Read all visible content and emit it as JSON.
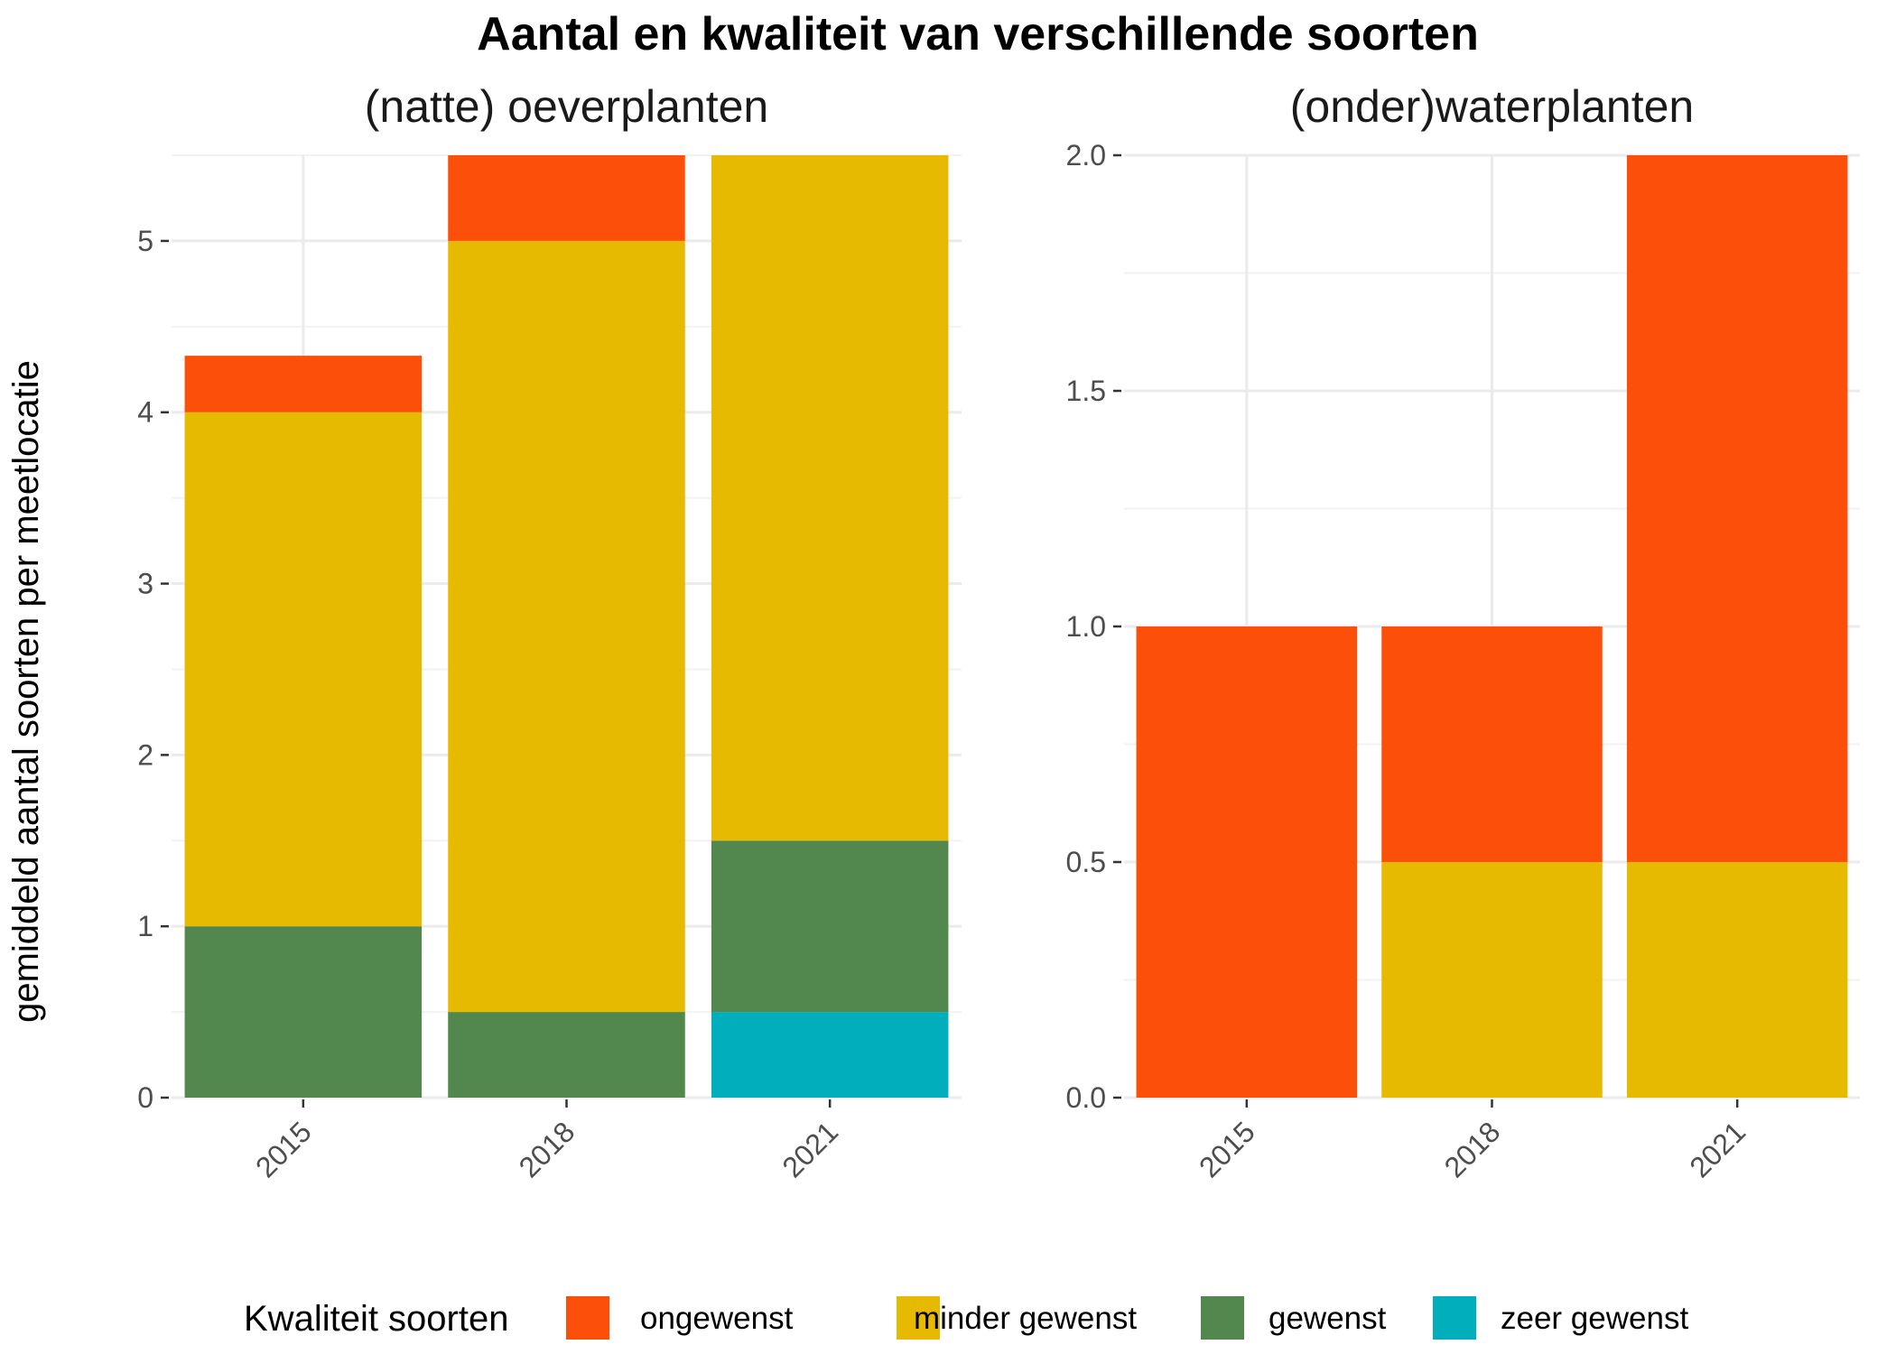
{
  "chart_data": {
    "type": "bar",
    "stacked": true,
    "title": "Aantal en kwaliteit van verschillende soorten",
    "ylabel": "gemiddeld aantal soorten per meetlocatie",
    "legend_title": "Kwaliteit soorten",
    "legend_position": "bottom",
    "categories": [
      "2015",
      "2018",
      "2021"
    ],
    "series_order": [
      "ongewenst",
      "minder gewenst",
      "gewenst",
      "zeer gewenst"
    ],
    "colors": {
      "ongewenst": "#FC500A",
      "minder gewenst": "#E5BA00",
      "gewenst": "#52884D",
      "zeer gewenst": "#00AFBB"
    },
    "panels": [
      {
        "title": "(natte) oeverplanten",
        "ylim": [
          0,
          5.5
        ],
        "yticks": [
          "0",
          "1",
          "2",
          "3",
          "4",
          "5"
        ],
        "ytick_values": [
          0,
          1,
          2,
          3,
          4,
          5
        ],
        "series": [
          {
            "name": "ongewenst",
            "values": [
              0.33,
              0.5,
              0
            ]
          },
          {
            "name": "minder gewenst",
            "values": [
              3.0,
              4.5,
              4.0
            ]
          },
          {
            "name": "gewenst",
            "values": [
              1.0,
              0.5,
              1.0
            ]
          },
          {
            "name": "zeer gewenst",
            "values": [
              0,
              0,
              0.5
            ]
          }
        ]
      },
      {
        "title": "(onder)waterplanten",
        "ylim": [
          0,
          2.0
        ],
        "yticks": [
          "0.0",
          "0.5",
          "1.0",
          "1.5",
          "2.0"
        ],
        "ytick_values": [
          0,
          0.5,
          1.0,
          1.5,
          2.0
        ],
        "series": [
          {
            "name": "ongewenst",
            "values": [
              1.0,
              0.5,
              1.5
            ]
          },
          {
            "name": "minder gewenst",
            "values": [
              0,
              0.5,
              0.5
            ]
          },
          {
            "name": "gewenst",
            "values": [
              0,
              0,
              0
            ]
          },
          {
            "name": "zeer gewenst",
            "values": [
              0,
              0,
              0
            ]
          }
        ]
      }
    ]
  }
}
